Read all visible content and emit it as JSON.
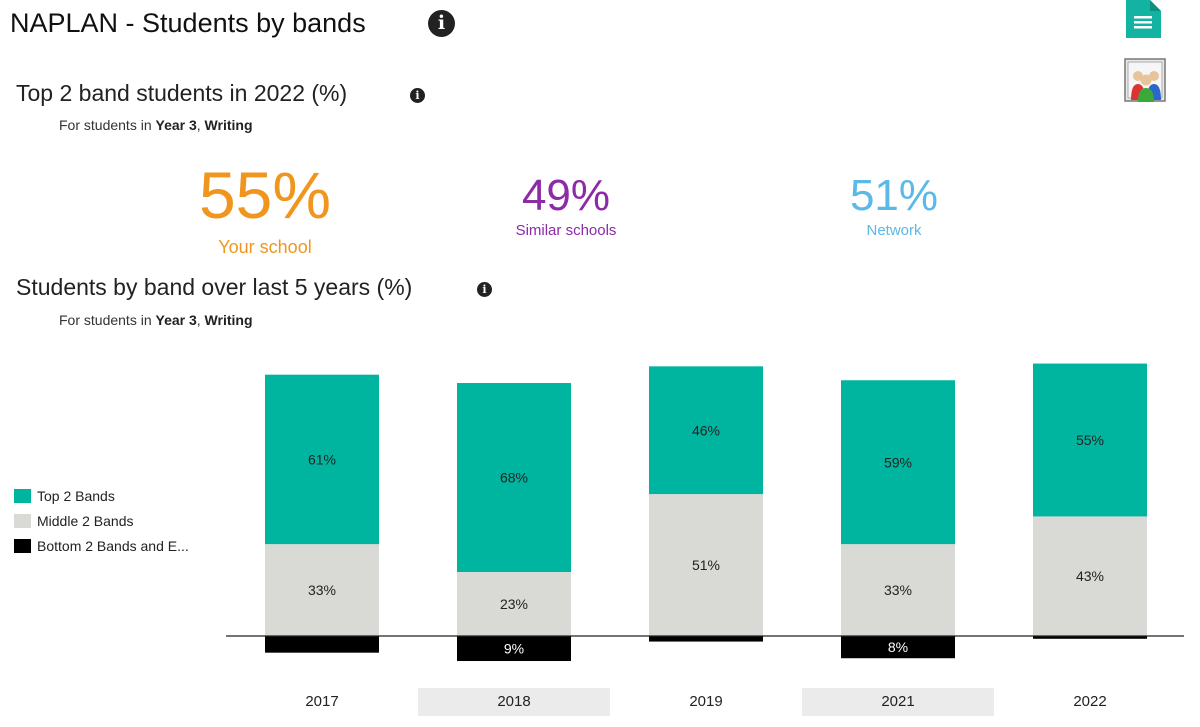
{
  "header": {
    "title": "NAPLAN - Students by bands",
    "info_icon": "info-icon"
  },
  "toolbar": {
    "export_icon": "document-icon",
    "groups_icon": "student-group-icon"
  },
  "top2": {
    "heading": "Top 2 band students in 2022 (%)",
    "filter_prefix": "For students in ",
    "filter_year": "Year 3",
    "filter_sep": ", ",
    "filter_domain": "Writing",
    "kpis": [
      {
        "value": "55%",
        "label": "Your school",
        "color": "#f0961e"
      },
      {
        "value": "49%",
        "label": "Similar schools",
        "color": "#8c2aa8"
      },
      {
        "value": "51%",
        "label": "Network",
        "color": "#5ab9e6"
      }
    ]
  },
  "bands": {
    "heading": "Students by band over last 5 years (%)",
    "filter_prefix": "For students in ",
    "filter_year": "Year 3",
    "filter_sep": ", ",
    "filter_domain": "Writing"
  },
  "chart_data": {
    "type": "bar",
    "stacked": true,
    "categories": [
      "2017",
      "2018",
      "2019",
      "2021",
      "2022"
    ],
    "series": [
      {
        "name": "Top 2 Bands",
        "color": "#00b5a0",
        "values": [
          61,
          68,
          46,
          59,
          55
        ],
        "labels": [
          "61%",
          "68%",
          "46%",
          "59%",
          "55%"
        ]
      },
      {
        "name": "Middle 2 Bands",
        "color": "#d9d9d6",
        "values": [
          33,
          23,
          51,
          33,
          43
        ],
        "labels": [
          "33%",
          "23%",
          "51%",
          "33%",
          "43%"
        ]
      },
      {
        "name": "Bottom 2 Bands and E...",
        "color": "#000000",
        "values": [
          6,
          9,
          2,
          8,
          1
        ],
        "labels": [
          "",
          "9%",
          "",
          "8%",
          ""
        ]
      }
    ],
    "highlighted_categories": [
      "2018",
      "2021"
    ],
    "legend_position": "left"
  }
}
